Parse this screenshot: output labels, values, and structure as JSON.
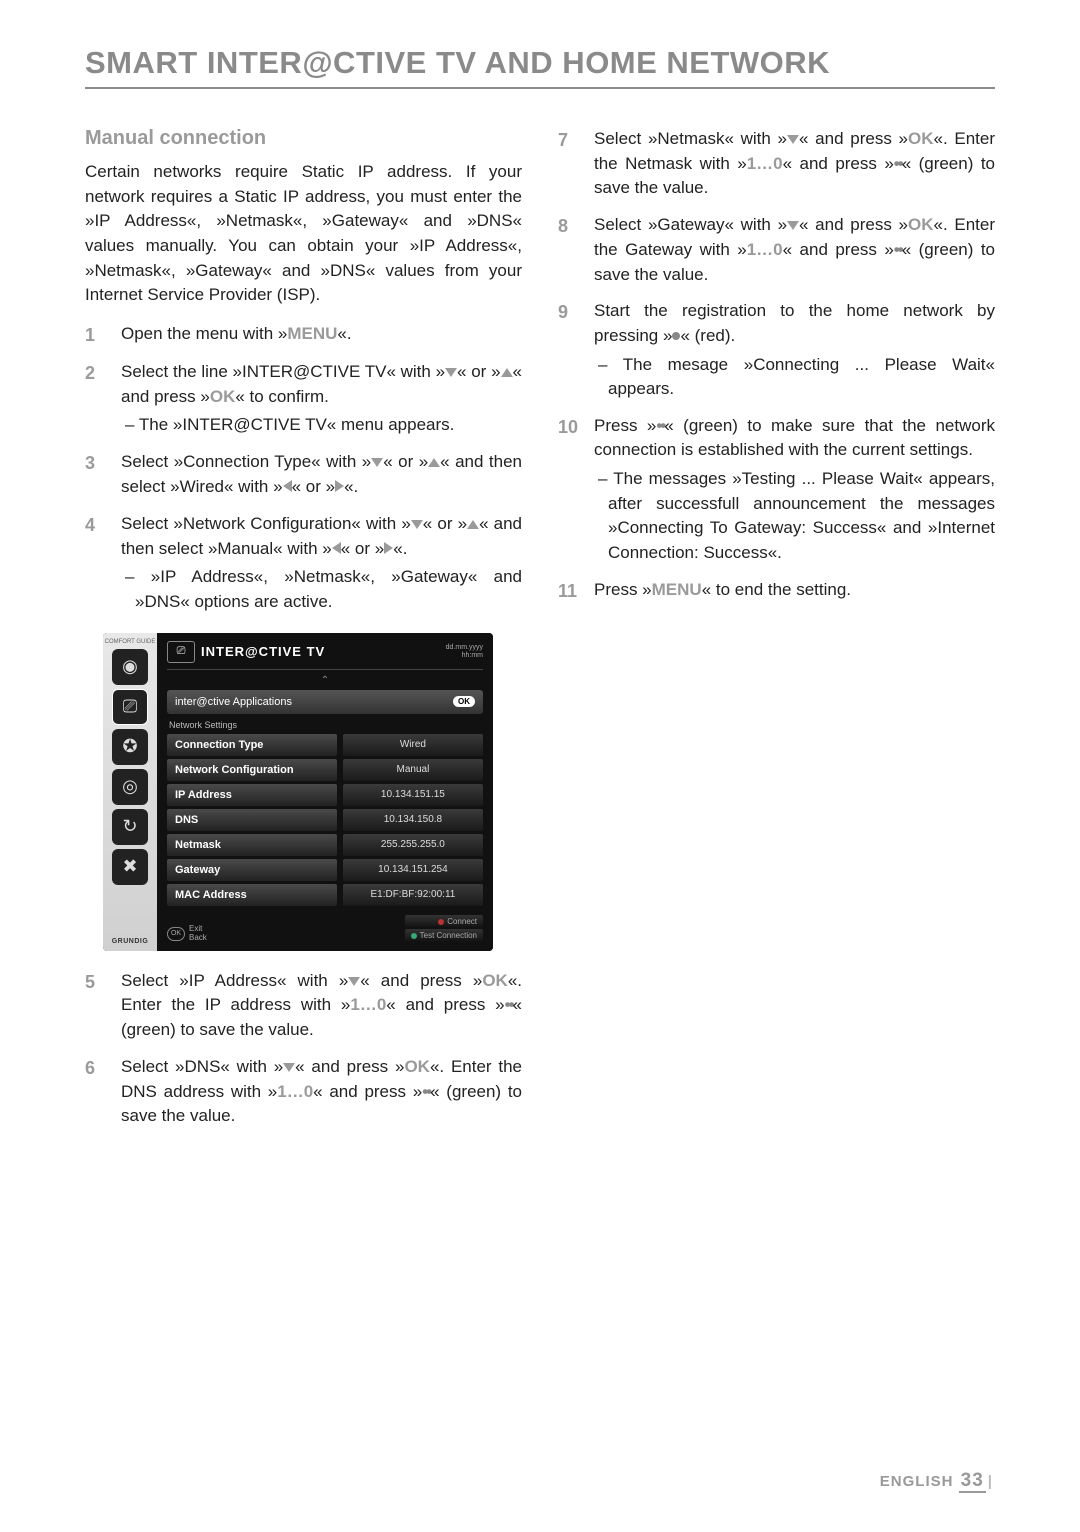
{
  "page": {
    "title": "SMART INTER@CTIVE TV AND HOME NETWORK",
    "footer_lang": "ENGLISH",
    "footer_page": "33"
  },
  "section": {
    "heading": "Manual connection",
    "intro": "Certain networks require Static IP address. If your network requires a Static IP address, you must enter the »IP Address«, »Netmask«, »Gateway« and »DNS« values manually. You can obtain your »IP Address«, »Netmask«, »Gateway« and »DNS« values from your Internet Service Provider (ISP)."
  },
  "buttons": {
    "menu": "MENU",
    "ok": "OK",
    "digits": "1…0"
  },
  "steps": {
    "s1": "Open the menu with »",
    "s1b": "«.",
    "s2a": "Select the line »INTER@CTIVE TV« with »",
    "s2b": "« or »",
    "s2c": "« and press »",
    "s2d": "« to confirm.",
    "s2sub": "– The »INTER@CTIVE TV« menu appears.",
    "s3a": "Select »Connection Type« with »",
    "s3b": "« or »",
    "s3c": "« and then select »Wired« with »",
    "s3d": "« or »",
    "s3e": "«.",
    "s4a": "Select »Network Configuration« with »",
    "s4b": "« or »",
    "s4c": "« and then select »Manual« with »",
    "s4d": "« or »",
    "s4e": "«.",
    "s4sub": "– »IP Address«, »Netmask«, »Gateway« and »DNS« options are active.",
    "s5a": "Select »IP Address« with »",
    "s5b": "« and press »",
    "s5c": "«. Enter the IP address with »",
    "s5d": "« and press »",
    "s5e": "« (green) to save the value.",
    "s6a": "Select »DNS« with »",
    "s6b": "« and press »",
    "s6c": "«. Enter the DNS address with »",
    "s6d": "« and press »",
    "s6e": "« (green) to save the value.",
    "s7a": "Select »Netmask« with »",
    "s7b": "« and press »",
    "s7c": "«. Enter the Netmask with »",
    "s7d": "« and press »",
    "s7e": "« (green) to save the value.",
    "s8a": "Select »Gateway« with »",
    "s8b": "« and press »",
    "s8c": "«. Enter the Gateway with »",
    "s8d": "« and press »",
    "s8e": "« (green) to save the value.",
    "s9a": "Start the registration to the home network by pressing »",
    "s9b": "« (red).",
    "s9sub": "– The mesage »Connecting ... Please Wait« appears.",
    "s10a": "Press »",
    "s10b": "« (green) to make sure that the network connection is established with the current settings.",
    "s10sub": "– The messages »Testing ... Please Wait« appears, after successfull announcement the messages »Connecting To Gateway: Success« and »Internet Connection: Success«.",
    "s11a": "Press »",
    "s11b": "« to end the setting."
  },
  "tv": {
    "comfort_guide": "COMFORT GUIDE",
    "brand": "GRUNDIG",
    "title": "INTER@CTIVE TV",
    "date1": "dd.mm.yyyy",
    "date2": "hh:mm",
    "apps": "inter@ctive Applications",
    "ok": "OK",
    "net_settings": "Network Settings",
    "rows": [
      {
        "label": "Connection Type",
        "value": "Wired"
      },
      {
        "label": "Network Configuration",
        "value": "Manual"
      },
      {
        "label": "IP Address",
        "value": "10.134.151.15"
      },
      {
        "label": "DNS",
        "value": "10.134.150.8"
      },
      {
        "label": "Netmask",
        "value": "255.255.255.0"
      },
      {
        "label": "Gateway",
        "value": "10.134.151.254"
      },
      {
        "label": "MAC Address",
        "value": "E1:DF:BF:92:00:11"
      }
    ],
    "footer": {
      "ok": "OK",
      "exit": "Exit",
      "back": "Back",
      "connect": "Connect",
      "test": "Test Connection",
      "dot_connect": "#b33",
      "dot_test": "#3a7"
    }
  }
}
